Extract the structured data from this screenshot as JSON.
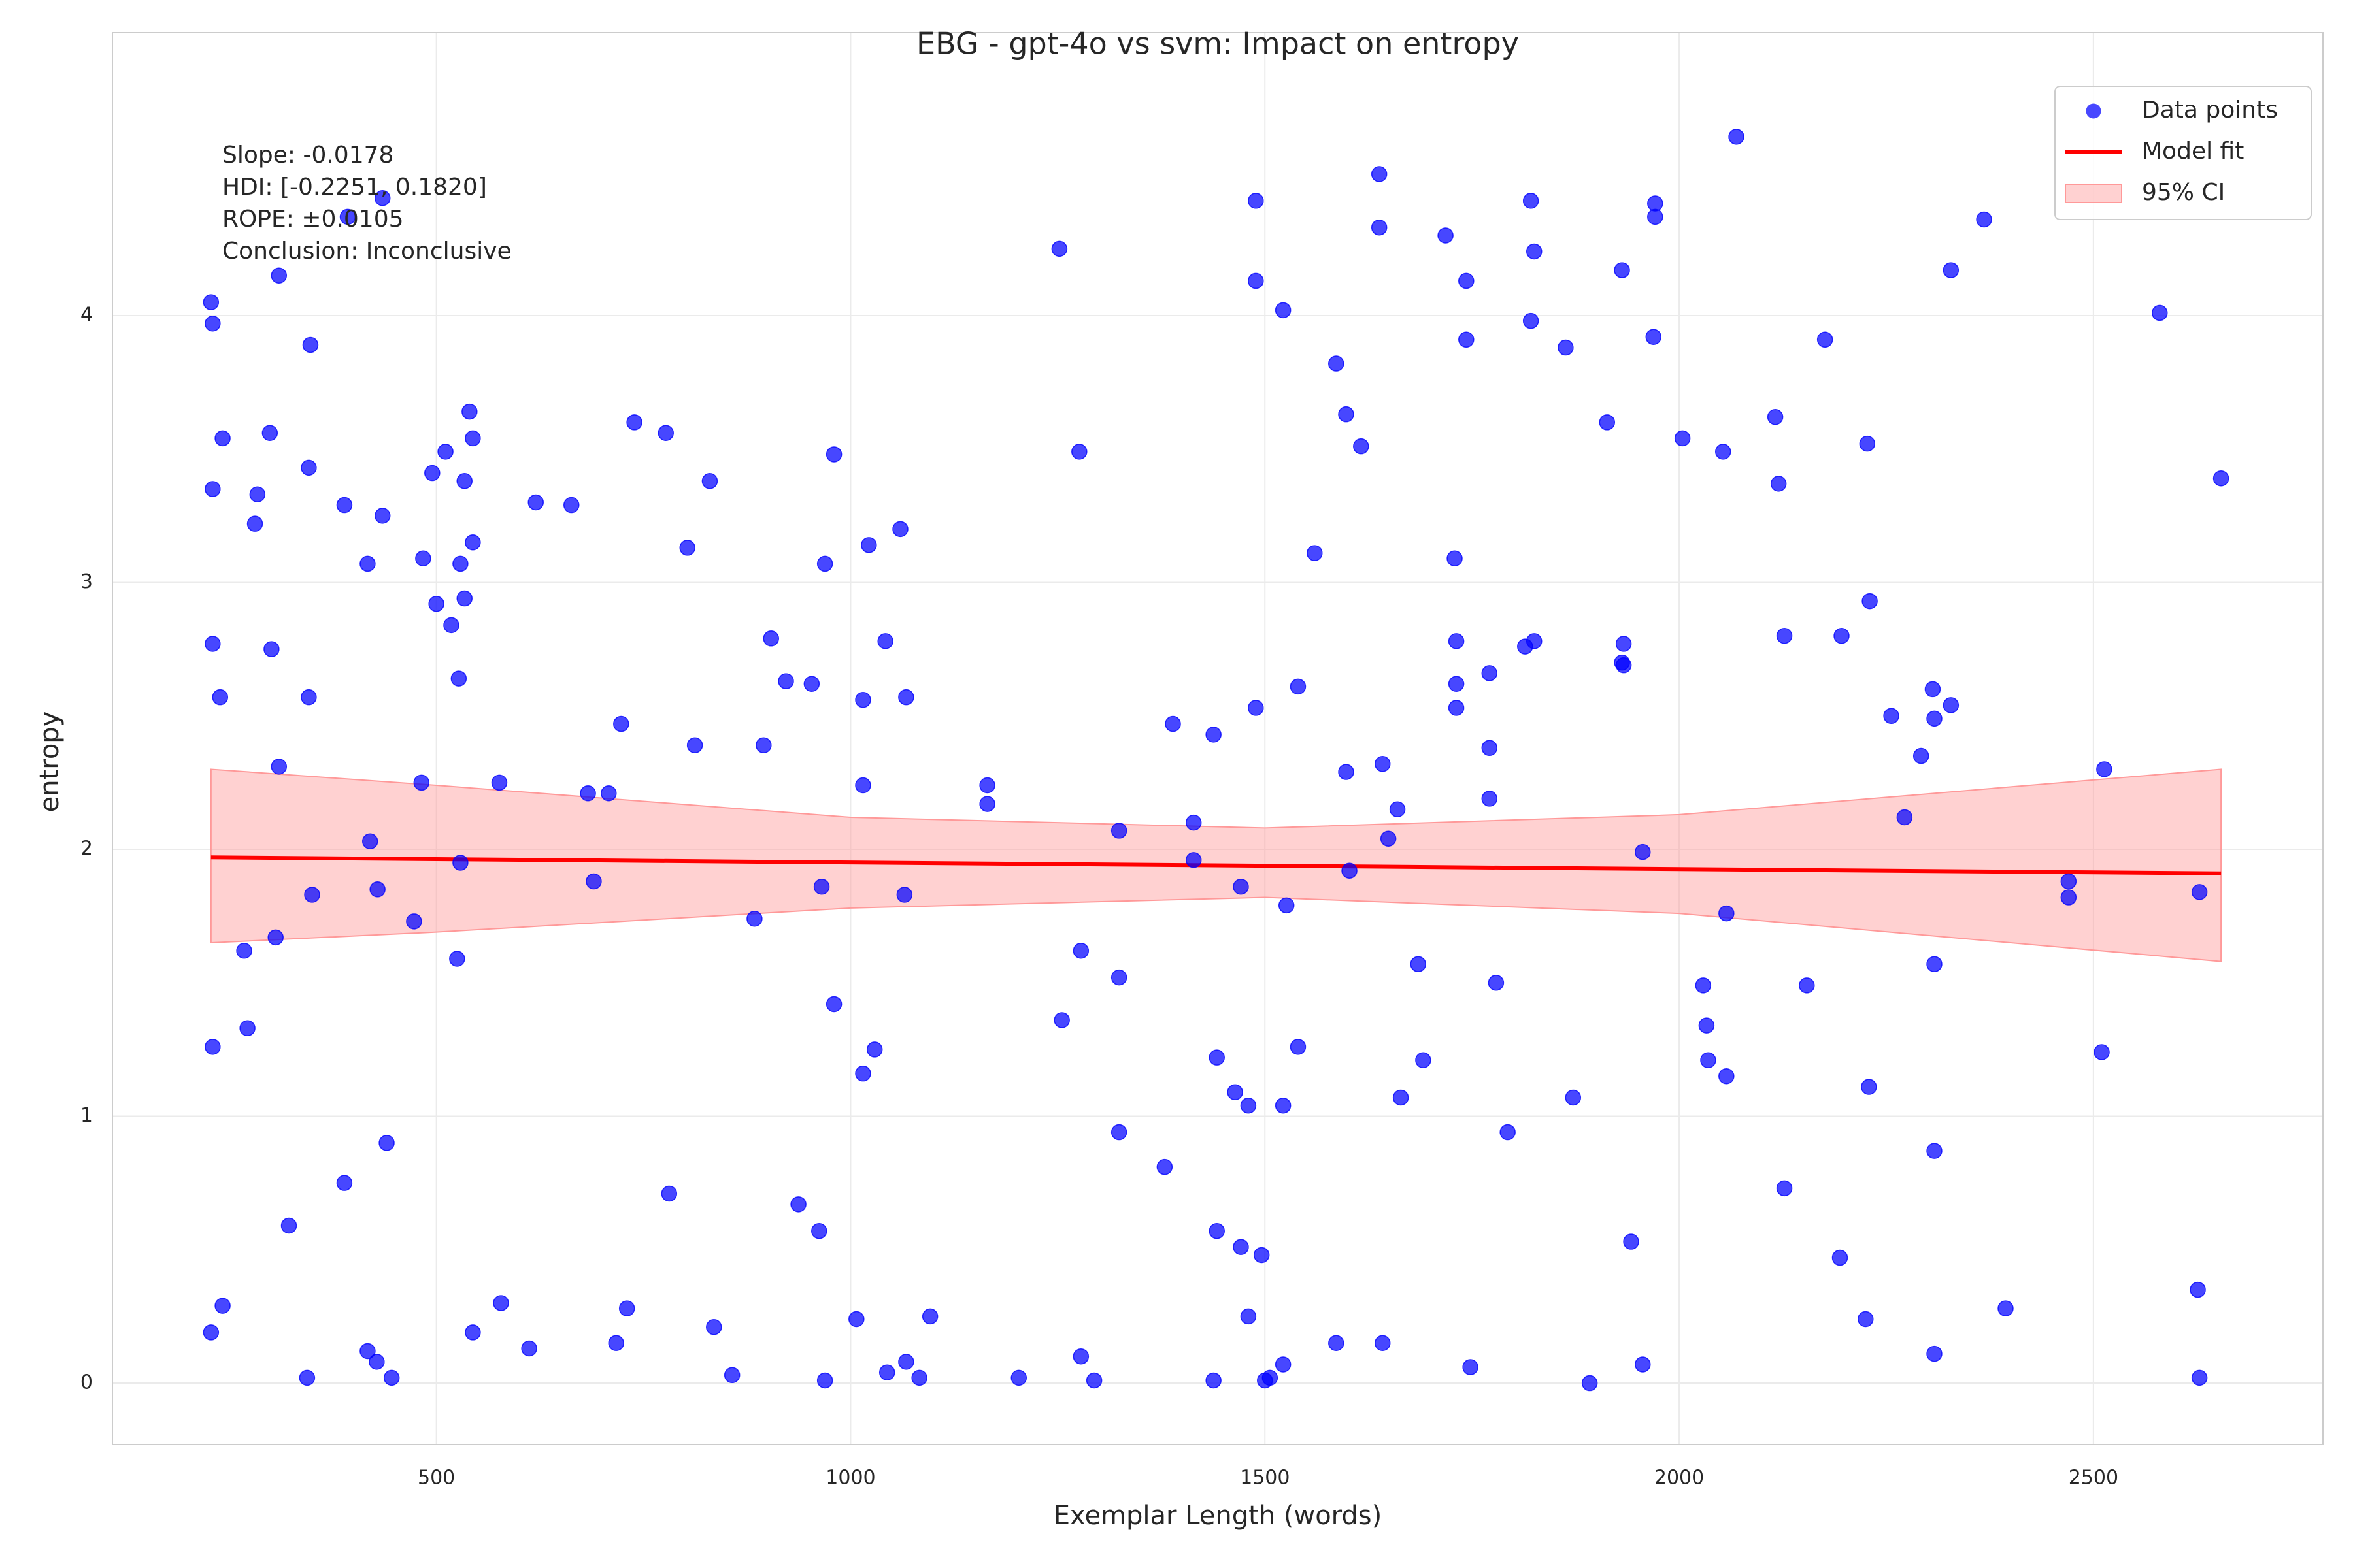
{
  "chart_data": {
    "type": "scatter",
    "title": "EBG - gpt-4o vs svm: Impact on entropy",
    "x_label": "Exemplar Length (words)",
    "y_label": "entropy",
    "annotation": [
      "Slope: -0.0178",
      "HDI: [-0.2251, 0.1820]",
      "ROPE: ±0.0105",
      "Conclusion: Inconclusive"
    ],
    "xlim": [
      109,
      2777
    ],
    "ylim": [
      -0.23,
      5.06
    ],
    "xticks": [
      500,
      1000,
      1500,
      2000,
      2500
    ],
    "yticks": [
      0,
      1,
      2,
      3,
      4
    ],
    "grid": true,
    "legend": "upper right",
    "series": [
      {
        "name": "Data points",
        "style": "points",
        "color": "#0000ff",
        "x": [
          228,
          230,
          242,
          230,
          284,
          281,
          299,
          346,
          348,
          310,
          389,
          435,
          417,
          484,
          511,
          495,
          534,
          540,
          544,
          544,
          529,
          534,
          500,
          518,
          527,
          230,
          239,
          301,
          346,
          310,
          482,
          576,
          620,
          663,
          739,
          777,
          830,
          803,
          723,
          683,
          708,
          812,
          904,
          922,
          953,
          895,
          980,
          969,
          1022,
          1060,
          1042,
          1015,
          1067,
          1015,
          1165,
          1165,
          1252,
          1276,
          420,
          429,
          529,
          690,
          350,
          473,
          268,
          306,
          525,
          272,
          230,
          965,
          1065,
          884,
          980,
          1029,
          1015,
          1278,
          1324,
          1255,
          1324,
          1414,
          1414,
          1471,
          1526,
          1389,
          1438,
          1489,
          1540,
          1560,
          1586,
          1598,
          1616,
          1489,
          1489,
          1522,
          1638,
          1638,
          1718,
          1743,
          1743,
          1729,
          1821,
          1825,
          1821,
          1863,
          2069,
          1971,
          1971,
          1931,
          1969,
          1913,
          2004,
          2053,
          2116,
          2120,
          2176,
          2227,
          2328,
          2368,
          2580,
          2654,
          1598,
          1642,
          1660,
          1649,
          1602,
          1731,
          1731,
          1731,
          1771,
          1771,
          1771,
          1814,
          1825,
          1933,
          1931,
          1933,
          1956,
          2127,
          2196,
          2230,
          2306,
          2256,
          2308,
          2328,
          2292,
          2272,
          2513,
          2470,
          2470,
          2628,
          2057,
          1685,
          1779,
          2029,
          2033,
          2154,
          2308,
          2035,
          2057,
          2229,
          2510,
          1691,
          1540,
          1664,
          1872,
          1442,
          1464,
          1480,
          1522,
          1324,
          1379,
          1793,
          2308,
          2127,
          1942,
          2194,
          1442,
          1471,
          1496,
          1480,
          1586,
          1642,
          1522,
          1748,
          1892,
          1956,
          2225,
          2394,
          2308,
          2626,
          2628,
          1438,
          1500,
          1506,
          1203,
          1294,
          1278,
          1083,
          1067,
          1044,
          969,
          1007,
          1096,
          857,
          835,
          717,
          730,
          612,
          578,
          544,
          446,
          428,
          417,
          344,
          242,
          228,
          322,
          389,
          440,
          781,
          937,
          962,
          393,
          435
        ],
        "y": [
          4.05,
          3.97,
          3.54,
          3.35,
          3.33,
          3.22,
          3.56,
          3.43,
          3.89,
          4.15,
          3.29,
          3.25,
          3.07,
          3.09,
          3.49,
          3.41,
          3.38,
          3.64,
          3.54,
          3.15,
          3.07,
          2.94,
          2.92,
          2.84,
          2.64,
          2.77,
          2.57,
          2.75,
          2.57,
          2.31,
          2.25,
          2.25,
          3.3,
          3.29,
          3.6,
          3.56,
          3.38,
          3.13,
          2.47,
          2.21,
          2.21,
          2.39,
          2.79,
          2.63,
          2.62,
          2.39,
          3.48,
          3.07,
          3.14,
          3.2,
          2.78,
          2.56,
          2.57,
          2.24,
          2.24,
          2.17,
          4.25,
          3.49,
          2.03,
          1.85,
          1.95,
          1.88,
          1.83,
          1.73,
          1.62,
          1.67,
          1.59,
          1.33,
          1.26,
          1.86,
          1.83,
          1.74,
          1.42,
          1.25,
          1.16,
          1.62,
          1.52,
          1.36,
          2.07,
          2.1,
          1.96,
          1.86,
          1.79,
          2.47,
          2.43,
          2.53,
          2.61,
          3.11,
          3.82,
          3.63,
          3.51,
          4.43,
          4.13,
          4.02,
          4.53,
          4.33,
          4.3,
          4.13,
          3.91,
          3.09,
          4.43,
          4.24,
          3.98,
          3.88,
          4.67,
          4.42,
          4.37,
          4.17,
          3.92,
          3.6,
          3.54,
          3.49,
          3.62,
          3.37,
          3.91,
          3.52,
          4.17,
          4.36,
          4.01,
          3.39,
          2.29,
          2.32,
          2.15,
          2.04,
          1.92,
          2.78,
          2.53,
          2.62,
          2.66,
          2.38,
          2.19,
          2.76,
          2.78,
          2.77,
          2.7,
          2.69,
          1.99,
          2.8,
          2.8,
          2.93,
          2.6,
          2.5,
          2.49,
          2.54,
          2.35,
          2.12,
          2.3,
          1.88,
          1.82,
          1.84,
          1.76,
          1.57,
          1.5,
          1.49,
          1.34,
          1.49,
          1.57,
          1.21,
          1.15,
          1.11,
          1.24,
          1.21,
          1.26,
          1.07,
          1.07,
          1.22,
          1.09,
          1.04,
          1.04,
          0.94,
          0.81,
          0.94,
          0.87,
          0.73,
          0.53,
          0.47,
          0.57,
          0.51,
          0.48,
          0.25,
          0.15,
          0.15,
          0.07,
          0.06,
          0.0,
          0.07,
          0.24,
          0.28,
          0.11,
          0.35,
          0.02,
          0.01,
          0.01,
          0.02,
          0.02,
          0.01,
          0.1,
          0.02,
          0.08,
          0.04,
          0.01,
          0.24,
          0.25,
          0.03,
          0.21,
          0.15,
          0.28,
          0.13,
          0.3,
          0.19,
          0.02,
          0.08,
          0.12,
          0.02,
          0.29,
          0.19,
          0.59,
          0.75,
          0.9,
          0.71,
          0.67,
          0.57,
          4.37,
          4.44
        ]
      },
      {
        "name": "Model fit",
        "style": "line",
        "color": "#ff0000",
        "x": [
          228,
          2654
        ],
        "y": [
          1.97,
          1.91
        ]
      },
      {
        "name": "95% CI",
        "style": "band",
        "color": "#ff9999",
        "x": [
          228,
          500,
          1000,
          1500,
          2000,
          2654
        ],
        "lower": [
          1.65,
          1.69,
          1.78,
          1.82,
          1.76,
          1.58
        ],
        "upper": [
          2.3,
          2.24,
          2.12,
          2.08,
          2.13,
          2.3
        ]
      }
    ]
  }
}
